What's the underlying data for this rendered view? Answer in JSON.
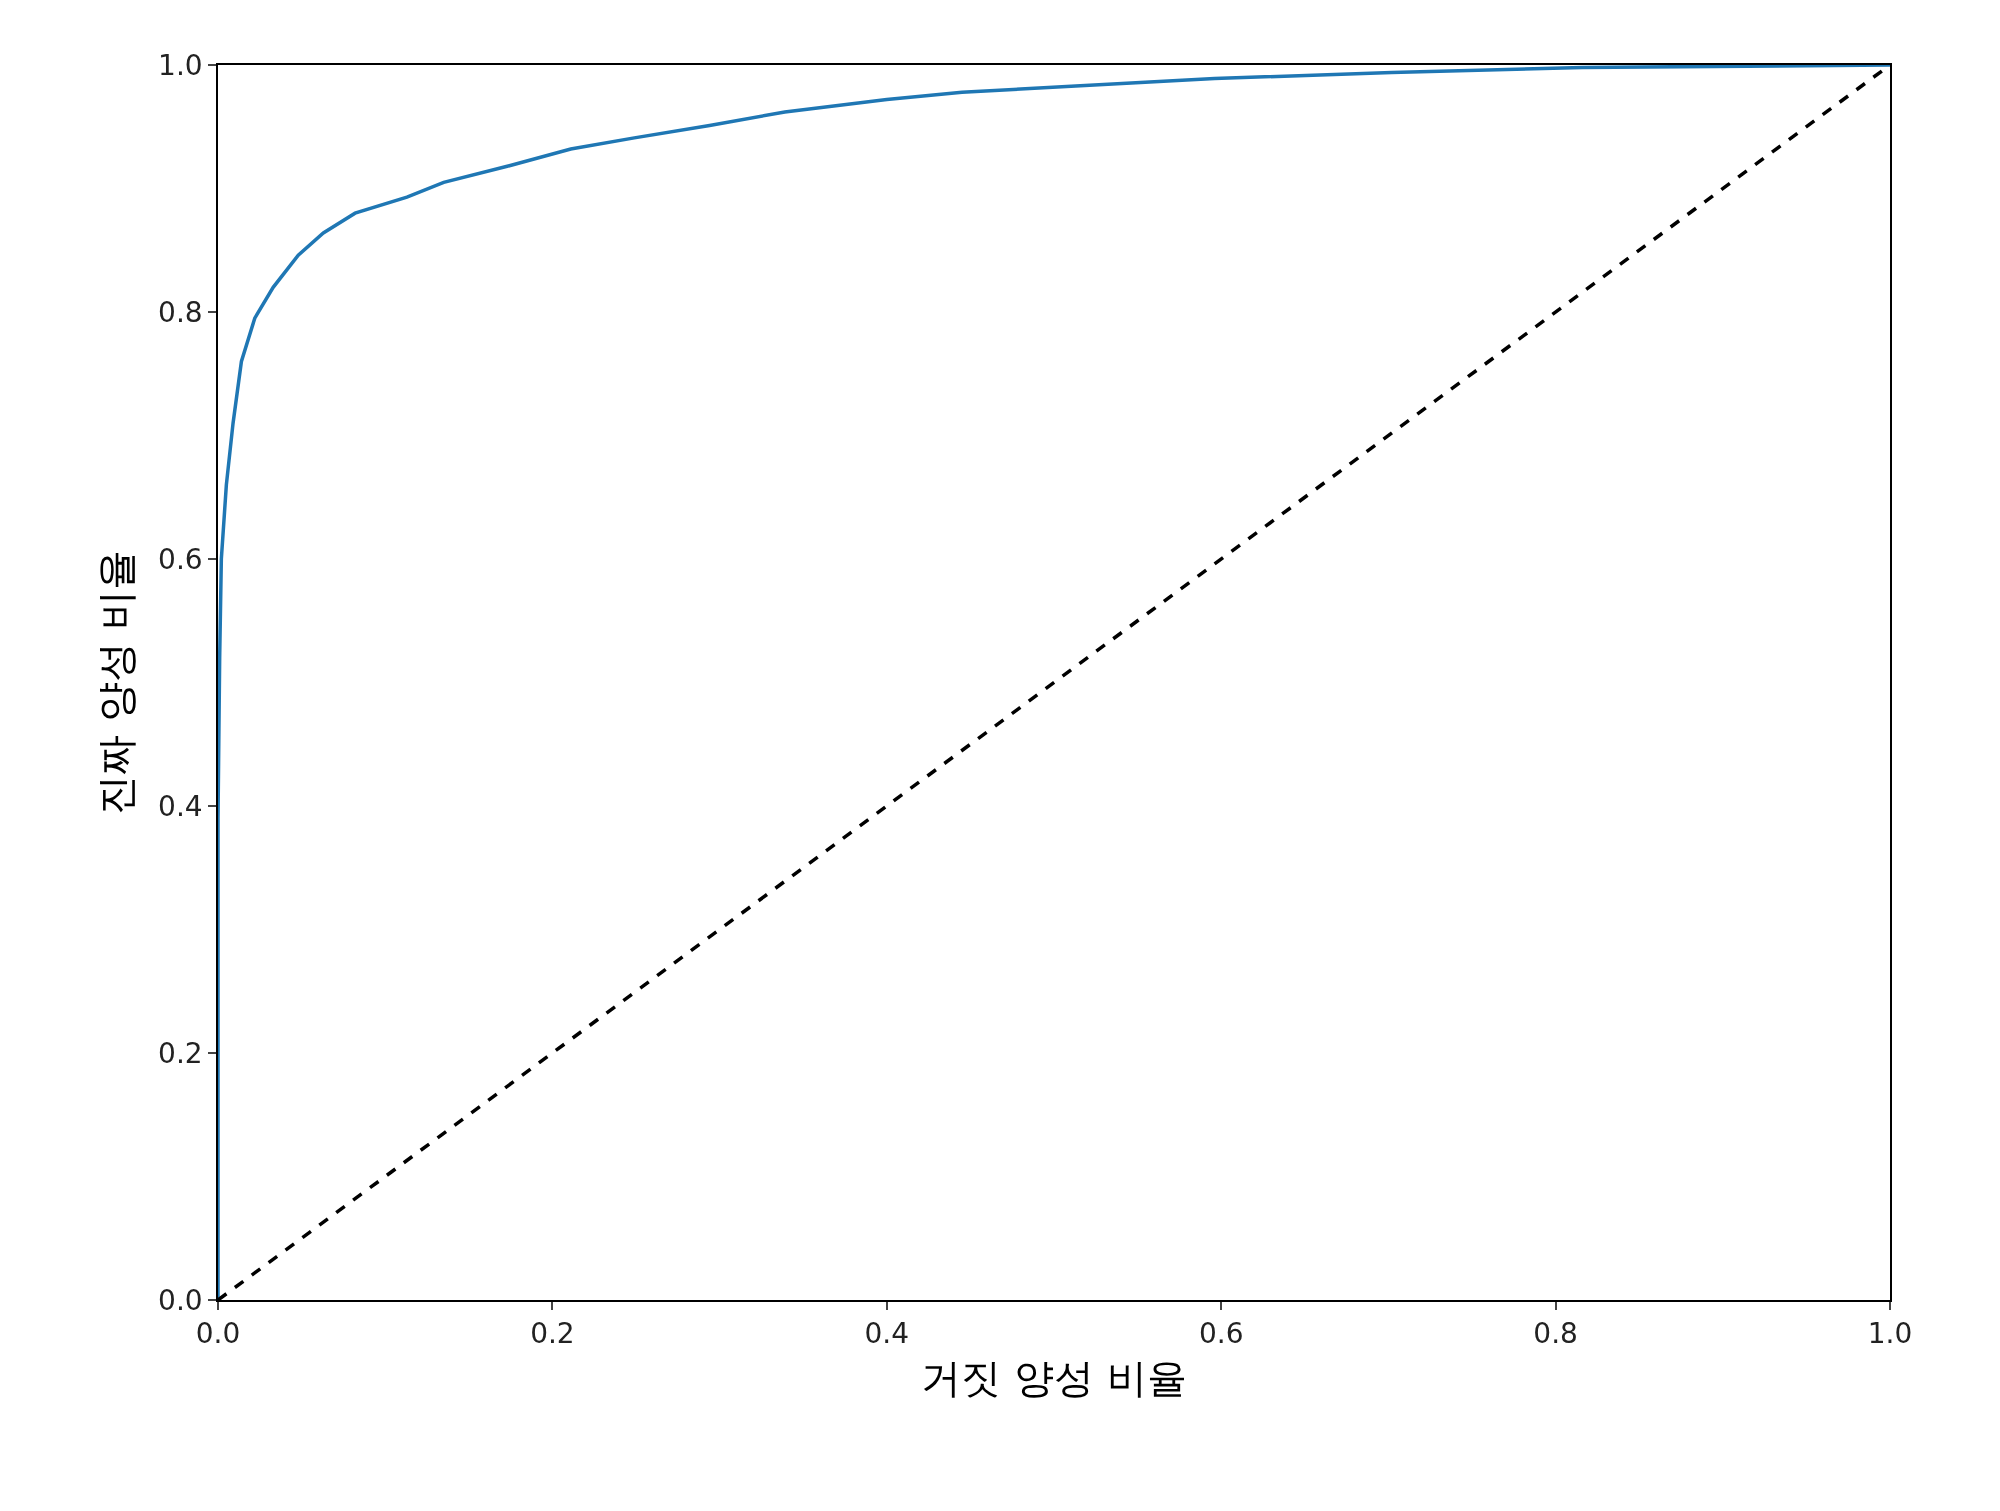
{
  "chart_data": {
    "type": "line",
    "xlabel": "거짓 양성 비율",
    "ylabel": "진짜 양성 비율",
    "xlim": [
      0,
      1
    ],
    "ylim": [
      0,
      1
    ],
    "xticks": [
      {
        "value": 0,
        "label": "0.0"
      },
      0.2,
      0.4,
      0.6,
      0.8,
      {
        "value": 1,
        "label": "1.0"
      }
    ],
    "yticks": [
      {
        "value": 0,
        "label": "0.0"
      },
      0.2,
      0.4,
      0.6,
      0.8,
      {
        "value": 1,
        "label": "1.0"
      }
    ],
    "marker": "none",
    "series": [
      {
        "color": "#1f77b4",
        "line_style": "solid",
        "x": [
          0,
          0,
          0.001,
          0.002,
          0.005,
          0.009,
          0.014,
          0.022,
          0.033,
          0.048,
          0.063,
          0.082,
          0.113,
          0.135,
          0.173,
          0.211,
          0.249,
          0.294,
          0.339,
          0.4,
          0.445,
          0.513,
          0.596,
          0.702,
          0.816,
          1
        ],
        "values": [
          0,
          0.39,
          0.52,
          0.6,
          0.66,
          0.71,
          0.76,
          0.795,
          0.82,
          0.846,
          0.864,
          0.88,
          0.893,
          0.905,
          0.918,
          0.932,
          0.941,
          0.951,
          0.962,
          0.972,
          0.978,
          0.983,
          0.989,
          0.994,
          0.998,
          1
        ]
      },
      {
        "color": "#000000",
        "line_style": "dashed",
        "x": [
          0,
          1
        ],
        "values": [
          0,
          1
        ]
      }
    ]
  }
}
